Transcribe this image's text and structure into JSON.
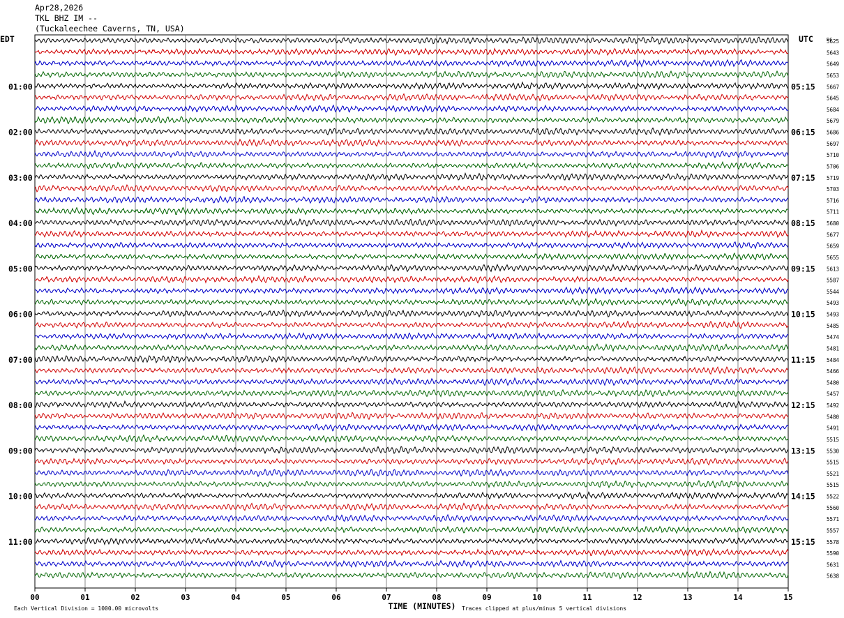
{
  "header": {
    "date": "Apr28,2026",
    "station": "TKL BHZ IM --",
    "location": "(Tuckaleechee Caverns, TN, USA)"
  },
  "chart_data": {
    "type": "line",
    "left_axis_label": "EDT",
    "right_axis_label": "UTC",
    "dc_label": "DC",
    "xlabel": "TIME (MINUTES)",
    "x_ticks": [
      "00",
      "01",
      "02",
      "03",
      "04",
      "05",
      "06",
      "07",
      "08",
      "09",
      "10",
      "11",
      "12",
      "13",
      "14",
      "15"
    ],
    "xlim": [
      0,
      15
    ],
    "left_hour_labels": [
      "01:00",
      "02:00",
      "03:00",
      "04:00",
      "05:00",
      "06:00",
      "07:00",
      "08:00",
      "09:00",
      "10:00",
      "11:00"
    ],
    "right_hour_labels": [
      "05:15",
      "06:15",
      "07:15",
      "08:15",
      "09:15",
      "10:15",
      "11:15",
      "12:15",
      "13:15",
      "14:15",
      "15:15"
    ],
    "trace_colors": [
      "#000000",
      "#d00000",
      "#0000c8",
      "#006400"
    ],
    "dc_values": [
      5625,
      5643,
      5649,
      5653,
      5667,
      5645,
      5684,
      5679,
      5686,
      5697,
      5710,
      5706,
      5719,
      5703,
      5716,
      5711,
      5680,
      5677,
      5659,
      5655,
      5613,
      5587,
      5544,
      5493,
      5493,
      5485,
      5474,
      5481,
      5484,
      5466,
      5480,
      5457,
      5492,
      5480,
      5491,
      5515,
      5530,
      5515,
      5521,
      5515,
      5522,
      5560,
      5571,
      5557,
      5578,
      5590,
      5631,
      5638
    ],
    "footer_scale": "Each Vertical Division = 1000.00 microvolts",
    "footer_clip": "Traces clipped at plus/minus 5 vertical divisions",
    "grid": true
  }
}
